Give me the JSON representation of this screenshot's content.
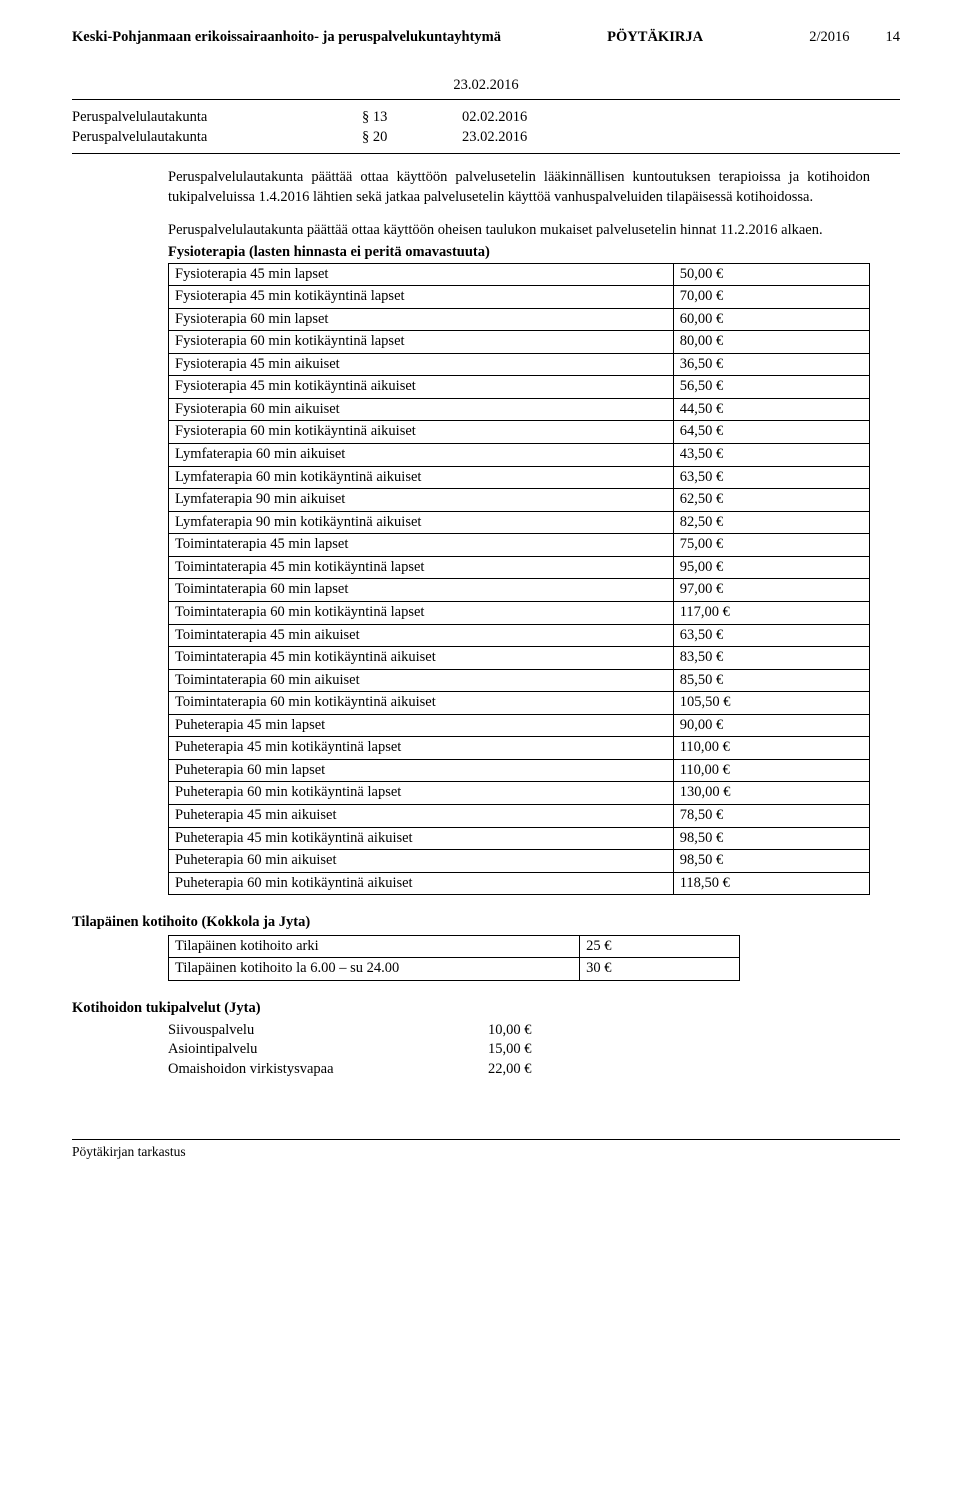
{
  "header": {
    "org": "Keski-Pohjanmaan erikoissairaanhoito- ja peruspalvelukuntayhtymä",
    "doc_type": "PÖYTÄKIRJA",
    "issue": "2/2016",
    "page_no": "14",
    "date": "23.02.2016"
  },
  "agenda": [
    {
      "body": "Peruspalvelulautakunta",
      "section": "§ 13",
      "date": "02.02.2016"
    },
    {
      "body": "Peruspalvelulautakunta",
      "section": "§ 20",
      "date": "23.02.2016"
    }
  ],
  "intro": {
    "p1": "Peruspalvelulautakunta päättää ottaa käyttöön palvelusetelin lääkinnällisen kuntoutuksen terapioissa ja kotihoidon tukipalveluissa 1.4.2016  lähtien sekä jatkaa palvelusetelin käyttöä vanhuspalveluiden tilapäisessä kotihoidossa.",
    "p2": "Peruspalvelulautakunta päättää ottaa käyttöön oheisen taulukon mukaiset palvelusetelin hinnat 11.2.2016 alkaen."
  },
  "price_table": {
    "heading": "Fysioterapia (lasten hinnasta ei peritä omavastuuta)",
    "rows": [
      [
        "Fysioterapia 45 min lapset",
        "50,00 €"
      ],
      [
        "Fysioterapia 45 min kotikäyntinä lapset",
        "70,00 €"
      ],
      [
        "Fysioterapia 60 min lapset",
        "60,00 €"
      ],
      [
        "Fysioterapia 60 min kotikäyntinä lapset",
        "80,00 €"
      ],
      [
        "Fysioterapia 45 min aikuiset",
        "36,50 €"
      ],
      [
        "Fysioterapia 45 min kotikäyntinä aikuiset",
        "56,50 €"
      ],
      [
        "Fysioterapia 60 min aikuiset",
        "44,50 €"
      ],
      [
        "Fysioterapia 60 min kotikäyntinä aikuiset",
        "64,50 €"
      ],
      [
        "Lymfaterapia 60 min aikuiset",
        "43,50 €"
      ],
      [
        "Lymfaterapia 60 min kotikäyntinä aikuiset",
        "63,50 €"
      ],
      [
        "Lymfaterapia 90 min aikuiset",
        "62,50 €"
      ],
      [
        "Lymfaterapia 90 min kotikäyntinä aikuiset",
        "82,50 €"
      ],
      [
        "Toimintaterapia 45 min lapset",
        "75,00 €"
      ],
      [
        "Toimintaterapia 45 min kotikäyntinä lapset",
        "95,00 €"
      ],
      [
        "Toimintaterapia 60 min lapset",
        "97,00 €"
      ],
      [
        "Toimintaterapia 60 min kotikäyntinä lapset",
        "117,00 €"
      ],
      [
        "Toimintaterapia 45 min aikuiset",
        "63,50 €"
      ],
      [
        "Toimintaterapia 45 min kotikäyntinä aikuiset",
        "83,50 €"
      ],
      [
        "Toimintaterapia 60 min aikuiset",
        "85,50 €"
      ],
      [
        "Toimintaterapia 60 min kotikäyntinä aikuiset",
        "105,50 €"
      ],
      [
        "Puheterapia 45 min lapset",
        "90,00 €"
      ],
      [
        "Puheterapia 45 min kotikäyntinä lapset",
        "110,00 €"
      ],
      [
        "Puheterapia 60 min lapset",
        "110,00 €"
      ],
      [
        "Puheterapia 60 min kotikäyntinä lapset",
        "130,00 €"
      ],
      [
        "Puheterapia 45 min aikuiset",
        "78,50 €"
      ],
      [
        "Puheterapia 45 min kotikäyntinä aikuiset",
        "98,50 €"
      ],
      [
        "Puheterapia 60 min aikuiset",
        "98,50 €"
      ],
      [
        "Puheterapia 60 min kotikäyntinä aikuiset",
        "118,50 €"
      ]
    ]
  },
  "temp_care": {
    "heading": "Tilapäinen kotihoito (Kokkola ja Jyta)",
    "rows": [
      [
        "Tilapäinen kotihoito arki",
        "25 €"
      ],
      [
        "Tilapäinen kotihoito la 6.00 – su 24.00",
        "30 €"
      ]
    ]
  },
  "support": {
    "heading": "Kotihoidon tukipalvelut (Jyta)",
    "rows": [
      [
        "Siivouspalvelu",
        "10,00 €"
      ],
      [
        "Asiointipalvelu",
        "15,00 €"
      ],
      [
        "Omaishoidon virkistysvapaa",
        "22,00 €"
      ]
    ]
  },
  "footer": "Pöytäkirjan tarkastus"
}
